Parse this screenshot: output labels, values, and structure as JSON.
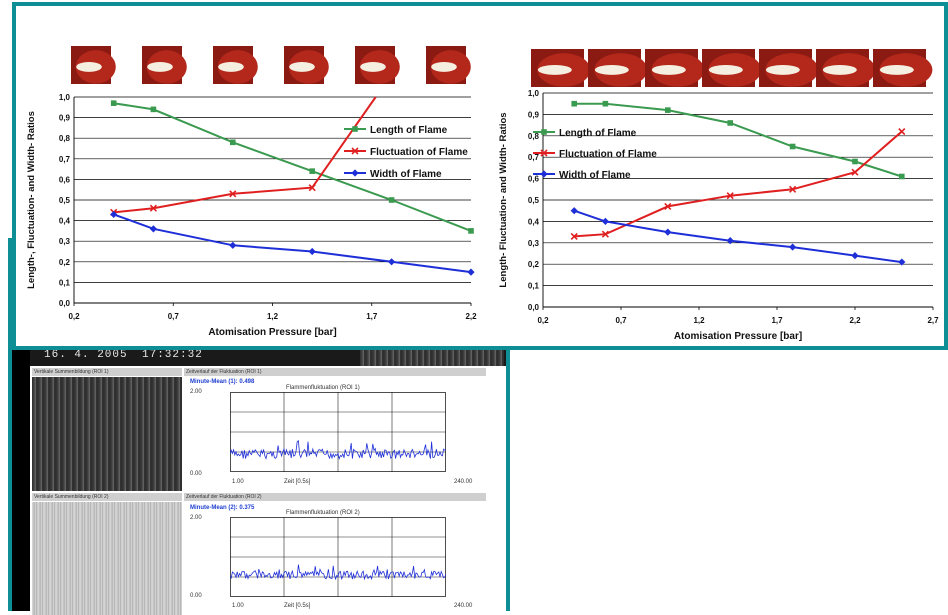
{
  "monitor": {
    "date": "16. 4. 2005",
    "time": "17:32:32",
    "panels": [
      {
        "left_strip": "Vertikale Summenbildung (ROI 1)",
        "right_strip": "Zeitverlauf der Fluktuation (ROI 1)",
        "mean": "Minute-Mean (1): 0.498",
        "title": "Flammenfluktuation (ROI 1)",
        "ymax": "2.00",
        "ymin": "0.00",
        "xstart": "1.00",
        "xlabel": "Zeit [0.5s]",
        "xend": "240.00"
      },
      {
        "left_strip": "Vertikale Summenbildung (ROI 2)",
        "right_strip": "Zeitverlauf der Fluktuation (ROI 2)",
        "mean": "Minute-Mean (2): 0.375",
        "title": "Flammenfluktuation (ROI 2)",
        "ymax": "2.00",
        "ymin": "0.00",
        "xstart": "1.00",
        "xlabel": "Zeit [0.5s]",
        "xend": "240.00"
      }
    ]
  },
  "colors": {
    "length": "#3a9a4f",
    "fluctuation": "#e02020",
    "width": "#1f2fd8",
    "frame": "#0e8f96"
  },
  "chart_data": [
    {
      "type": "line",
      "xlabel": "Atomisation Pressure [bar]",
      "ylabel": "Length-, Fluctuation- and Width- Ratios",
      "xlim": [
        0.2,
        2.2
      ],
      "ylim": [
        0,
        1.0
      ],
      "xticks": [
        "0,2",
        "0,7",
        "1,2",
        "1,7",
        "2,2"
      ],
      "yticks": [
        "0,0",
        "0,1",
        "0,2",
        "0,3",
        "0,4",
        "0,5",
        "0,6",
        "0,7",
        "0,8",
        "0,9",
        "1,0"
      ],
      "grid": true,
      "legend_position": "right",
      "thumbnails": 6,
      "series": [
        {
          "name": "Length of Flame",
          "marker": "square",
          "x": [
            0.4,
            0.6,
            1.0,
            1.4,
            1.8,
            2.2
          ],
          "y": [
            0.97,
            0.94,
            0.78,
            0.64,
            0.5,
            0.35
          ]
        },
        {
          "name": "Fluctuation of Flame",
          "marker": "cross",
          "x": [
            0.4,
            0.6,
            1.0,
            1.4,
            1.72
          ],
          "y": [
            0.44,
            0.46,
            0.53,
            0.56,
            1.0
          ]
        },
        {
          "name": "Width of Flame",
          "marker": "diamond",
          "x": [
            0.4,
            0.6,
            1.0,
            1.4,
            1.8,
            2.2
          ],
          "y": [
            0.43,
            0.36,
            0.28,
            0.25,
            0.2,
            0.15
          ]
        }
      ]
    },
    {
      "type": "line",
      "xlabel": "Atomisation Pressure [bar]",
      "ylabel": "Length- Fluctuation- and Width- Ratios",
      "xlim": [
        0.2,
        2.7
      ],
      "ylim": [
        0,
        1.0
      ],
      "xticks": [
        "0,2",
        "0,7",
        "1,2",
        "1,7",
        "2,2",
        "2,7"
      ],
      "yticks": [
        "0,0",
        "0,1",
        "0,2",
        "0,3",
        "0,4",
        "0,5",
        "0,6",
        "0,7",
        "0,8",
        "0,9",
        "1,0"
      ],
      "grid": true,
      "legend_position": "top-left",
      "thumbnails": 7,
      "series": [
        {
          "name": "Length of Flame",
          "marker": "square",
          "x": [
            0.4,
            0.6,
            1.0,
            1.4,
            1.8,
            2.2,
            2.5
          ],
          "y": [
            0.95,
            0.95,
            0.92,
            0.86,
            0.75,
            0.68,
            0.61
          ]
        },
        {
          "name": "Fluctuation of Flame",
          "marker": "cross",
          "x": [
            0.4,
            0.6,
            1.0,
            1.4,
            1.8,
            2.2,
            2.5
          ],
          "y": [
            0.33,
            0.34,
            0.47,
            0.52,
            0.55,
            0.63,
            0.82
          ]
        },
        {
          "name": "Width of Flame",
          "marker": "diamond",
          "x": [
            0.4,
            0.6,
            1.0,
            1.4,
            1.8,
            2.2,
            2.5
          ],
          "y": [
            0.45,
            0.4,
            0.35,
            0.31,
            0.28,
            0.24,
            0.21
          ]
        }
      ]
    }
  ]
}
